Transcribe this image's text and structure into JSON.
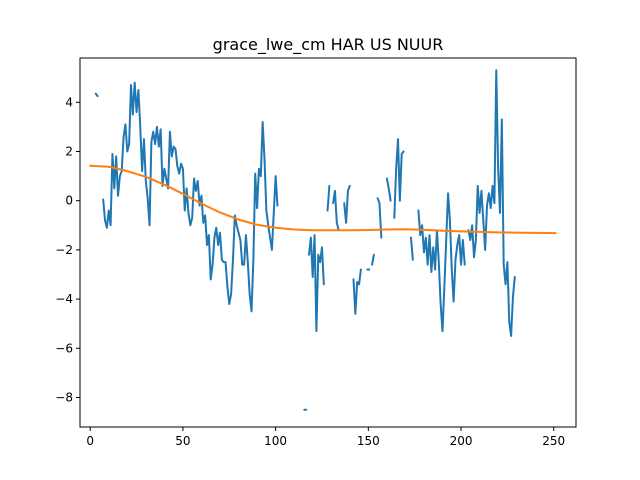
{
  "chart_data": {
    "type": "line",
    "title": "grace_lwe_cm HAR US NUUR",
    "xlabel": "",
    "ylabel": "",
    "xlim": [
      -5.5,
      262
    ],
    "ylim": [
      -9.2,
      5.8
    ],
    "xticks": [
      0,
      50,
      100,
      150,
      200,
      250
    ],
    "yticks": [
      -8,
      -6,
      -4,
      -2,
      0,
      2,
      4
    ],
    "ytick_labels": [
      "−8",
      "−6",
      "−4",
      "−2",
      "0",
      "2",
      "4"
    ],
    "grid": false,
    "legend": "none",
    "series": [
      {
        "color": "#1f77b4",
        "segments": [
          [
            [
              3,
              4.35
            ],
            [
              4,
              4.25
            ]
          ],
          [
            [
              7,
              0.05
            ],
            [
              8,
              -0.8
            ],
            [
              9,
              -1.1
            ],
            [
              10,
              -0.4
            ],
            [
              11,
              -1.0
            ],
            [
              12,
              1.9
            ],
            [
              13,
              0.5
            ],
            [
              14,
              1.8
            ],
            [
              15,
              0.2
            ],
            [
              16,
              1.0
            ],
            [
              17,
              1.2
            ],
            [
              18,
              2.6
            ],
            [
              19,
              3.1
            ],
            [
              20,
              2.0
            ],
            [
              21,
              2.3
            ],
            [
              22,
              4.7
            ],
            [
              23,
              3.5
            ],
            [
              24,
              4.8
            ],
            [
              25,
              3.6
            ],
            [
              26,
              4.5
            ],
            [
              27,
              3.0
            ],
            [
              28,
              1.2
            ],
            [
              29,
              2.5
            ],
            [
              30,
              0.8
            ],
            [
              31,
              0.1
            ],
            [
              32,
              -1.0
            ],
            [
              33,
              2.4
            ],
            [
              34,
              2.8
            ],
            [
              35,
              2.3
            ],
            [
              36,
              3.0
            ],
            [
              37,
              2.2
            ],
            [
              38,
              2.9
            ],
            [
              39,
              0.6
            ],
            [
              40,
              1.3
            ],
            [
              41,
              0.9
            ],
            [
              42,
              0.5
            ],
            [
              43,
              2.8
            ],
            [
              44,
              1.8
            ],
            [
              45,
              2.2
            ],
            [
              46,
              2.1
            ],
            [
              47,
              1.4
            ],
            [
              48,
              1.1
            ],
            [
              49,
              1.5
            ],
            [
              50,
              1.3
            ],
            [
              51,
              -0.4
            ],
            [
              52,
              0.5
            ],
            [
              53,
              -0.5
            ],
            [
              54,
              -1.0
            ],
            [
              55,
              -0.7
            ],
            [
              56,
              0.9
            ],
            [
              57,
              0.4
            ],
            [
              58,
              0.8
            ],
            [
              59,
              -0.2
            ],
            [
              60,
              0.2
            ],
            [
              61,
              -0.9
            ],
            [
              62,
              -0.6
            ],
            [
              63,
              -1.8
            ],
            [
              64,
              -1.4
            ],
            [
              65,
              -3.2
            ],
            [
              66,
              -2.6
            ],
            [
              67,
              -1.5
            ],
            [
              68,
              -1.1
            ],
            [
              69,
              -1.8
            ],
            [
              70,
              -1.3
            ],
            [
              71,
              -2.4
            ],
            [
              72,
              -2.5
            ],
            [
              73,
              -2.5
            ],
            [
              74,
              -3.5
            ],
            [
              75,
              -4.2
            ],
            [
              76,
              -3.8
            ],
            [
              77,
              -2.4
            ],
            [
              78,
              -0.6
            ],
            [
              79,
              -1.0
            ],
            [
              80,
              -1.3
            ],
            [
              81,
              -1.6
            ],
            [
              82,
              -2.6
            ],
            [
              83,
              -2.6
            ],
            [
              84,
              -1.4
            ],
            [
              85,
              -2.5
            ],
            [
              86,
              -3.8
            ],
            [
              87,
              -4.5
            ],
            [
              88,
              -2.4
            ],
            [
              89,
              1.1
            ],
            [
              90,
              -0.3
            ],
            [
              91,
              1.3
            ],
            [
              92,
              1.0
            ],
            [
              93,
              3.2
            ],
            [
              94,
              1.7
            ],
            [
              95,
              -0.4
            ],
            [
              96,
              -1.0
            ],
            [
              97,
              -1.5
            ],
            [
              98,
              -2.0
            ],
            [
              99,
              -0.5
            ],
            [
              100,
              1.0
            ],
            [
              101,
              -0.2
            ]
          ],
          [
            [
              116,
              -8.5
            ]
          ],
          [
            [
              118,
              -2.2
            ],
            [
              119,
              -1.5
            ],
            [
              120,
              -3.1
            ],
            [
              121,
              -1.4
            ],
            [
              122,
              -5.3
            ],
            [
              123,
              -2.2
            ],
            [
              124,
              -2.5
            ],
            [
              125,
              -1.9
            ],
            [
              126,
              -3.4
            ]
          ],
          [
            [
              128,
              -0.4
            ],
            [
              129,
              0.6
            ]
          ],
          [
            [
              131,
              -0.1
            ],
            [
              132,
              0.4
            ],
            [
              133,
              -0.9
            ],
            [
              134,
              -1.2
            ]
          ],
          [
            [
              137,
              -0.1
            ],
            [
              138,
              -0.9
            ],
            [
              139,
              0.4
            ],
            [
              140,
              0.6
            ]
          ],
          [
            [
              142,
              -3.2
            ],
            [
              143,
              -4.6
            ],
            [
              144,
              -3.3
            ],
            [
              145,
              -3.4
            ],
            [
              146,
              -2.8
            ]
          ],
          [
            [
              150,
              -2.8
            ]
          ],
          [
            [
              152,
              -2.6
            ],
            [
              153,
              -2.2
            ]
          ],
          [
            [
              155,
              0.1
            ],
            [
              156,
              -0.1
            ],
            [
              157,
              -1.5
            ]
          ],
          [
            [
              160,
              0.9
            ],
            [
              161,
              0.5
            ],
            [
              162,
              0.0
            ]
          ],
          [
            [
              164,
              -0.7
            ],
            [
              165,
              1.3
            ],
            [
              166,
              2.5
            ],
            [
              167,
              0.0
            ],
            [
              168,
              1.9
            ],
            [
              169,
              2.0
            ]
          ],
          [
            [
              173,
              -1.5
            ],
            [
              174,
              -2.4
            ]
          ],
          [
            [
              177,
              -0.4
            ],
            [
              178,
              -1.4
            ],
            [
              179,
              -1.0
            ],
            [
              180,
              -2.1
            ],
            [
              181,
              -1.5
            ],
            [
              182,
              -2.6
            ],
            [
              183,
              -1.4
            ],
            [
              184,
              -2.9
            ],
            [
              185,
              -1.9
            ],
            [
              186,
              -2.8
            ],
            [
              187,
              -1.2
            ],
            [
              188,
              -2.5
            ],
            [
              189,
              -4.2
            ],
            [
              190,
              -5.3
            ],
            [
              191,
              -3.5
            ],
            [
              192,
              -1.6
            ],
            [
              193,
              0.3
            ],
            [
              194,
              -0.8
            ],
            [
              195,
              -2.8
            ],
            [
              196,
              -4.1
            ],
            [
              197,
              -2.4
            ],
            [
              198,
              -1.8
            ],
            [
              199,
              -1.4
            ],
            [
              200,
              -2.6
            ],
            [
              201,
              -1.6
            ],
            [
              202,
              -2.6
            ]
          ],
          [
            [
              204,
              -1.2
            ],
            [
              205,
              -1.6
            ],
            [
              206,
              -1.0
            ],
            [
              207,
              -2.3
            ],
            [
              208,
              -1.6
            ],
            [
              209,
              0.6
            ],
            [
              210,
              -0.5
            ],
            [
              211,
              0.4
            ],
            [
              212,
              -0.8
            ],
            [
              213,
              -2.0
            ],
            [
              214,
              -0.2
            ],
            [
              215,
              0.3
            ],
            [
              216,
              -0.3
            ],
            [
              217,
              0.6
            ],
            [
              218,
              -0.1
            ],
            [
              219,
              5.3
            ],
            [
              220,
              1.3
            ],
            [
              221,
              -0.5
            ],
            [
              222,
              3.3
            ],
            [
              223,
              -2.6
            ],
            [
              224,
              -3.4
            ],
            [
              225,
              -2.5
            ],
            [
              226,
              -4.9
            ],
            [
              227,
              -5.5
            ],
            [
              228,
              -3.9
            ],
            [
              229,
              -3.1
            ]
          ]
        ]
      },
      {
        "color": "#ff7f0e",
        "points": [
          [
            0,
            1.42
          ],
          [
            10,
            1.38
          ],
          [
            20,
            1.2
          ],
          [
            30,
            0.97
          ],
          [
            40,
            0.65
          ],
          [
            50,
            0.28
          ],
          [
            60,
            -0.12
          ],
          [
            70,
            -0.48
          ],
          [
            80,
            -0.77
          ],
          [
            90,
            -0.98
          ],
          [
            100,
            -1.1
          ],
          [
            110,
            -1.17
          ],
          [
            120,
            -1.2
          ],
          [
            130,
            -1.2
          ],
          [
            140,
            -1.2
          ],
          [
            150,
            -1.19
          ],
          [
            160,
            -1.17
          ],
          [
            170,
            -1.16
          ],
          [
            180,
            -1.18
          ],
          [
            190,
            -1.22
          ],
          [
            200,
            -1.25
          ],
          [
            210,
            -1.27
          ],
          [
            220,
            -1.29
          ],
          [
            230,
            -1.3
          ],
          [
            240,
            -1.31
          ],
          [
            251,
            -1.32
          ]
        ]
      }
    ]
  }
}
